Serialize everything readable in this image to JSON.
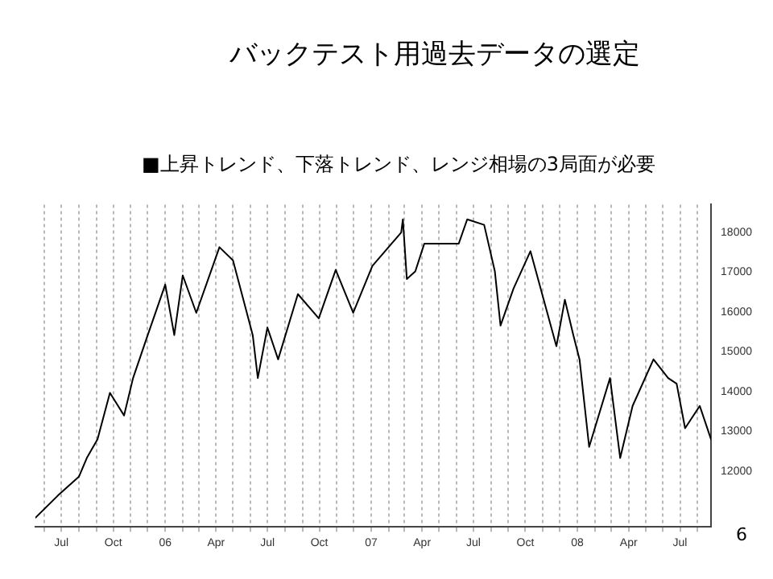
{
  "chart_data": {
    "type": "line",
    "title": "バックテスト用過去データの選定",
    "subtitle": "■上昇トレンド、下落トレンド、レンジ相場の3局面が必要",
    "annotations": [
      "6"
    ],
    "x": [
      "2005-05-16",
      "2005-06-25",
      "2005-08-01",
      "2005-08-15",
      "2005-09-03",
      "2005-09-25",
      "2005-10-20",
      "2005-11-05",
      "2005-11-30",
      "2006-01-01",
      "2006-01-17",
      "2006-02-01",
      "2006-02-25",
      "2006-04-07",
      "2006-05-01",
      "2006-06-05",
      "2006-06-14",
      "2006-07-01",
      "2006-07-20",
      "2006-08-24",
      "2006-09-30",
      "2006-10-30",
      "2006-11-30",
      "2007-01-03",
      "2007-02-23",
      "2007-02-26",
      "2007-03-05",
      "2007-03-20",
      "2007-04-05",
      "2007-06-05",
      "2007-06-20",
      "2007-07-20",
      "2007-08-08",
      "2007-08-18",
      "2007-09-10",
      "2007-10-10",
      "2007-11-25",
      "2007-12-10",
      "2007-12-25",
      "2008-01-05",
      "2008-01-22",
      "2008-02-28",
      "2008-03-17",
      "2008-04-08",
      "2008-05-15",
      "2008-06-10",
      "2008-06-25",
      "2008-07-10",
      "2008-08-05",
      "2008-08-25"
    ],
    "series": [
      {
        "color": "#000000",
        "values": [
          10830,
          11390,
          11860,
          12330,
          12800,
          13970,
          13400,
          14340,
          15380,
          16690,
          15420,
          16920,
          15980,
          17630,
          17300,
          15420,
          14340,
          15610,
          14810,
          16450,
          15840,
          17060,
          15980,
          17160,
          18000,
          18330,
          16830,
          17020,
          17720,
          17720,
          18330,
          18190,
          17020,
          15660,
          16590,
          17530,
          15140,
          16310,
          15420,
          14810,
          12610,
          14340,
          12330,
          13640,
          14810,
          14340,
          14200,
          13080,
          13640,
          12800
        ]
      }
    ],
    "xlim": [
      "2005-05-16",
      "2008-08-25"
    ],
    "xticks": [
      {
        "value": "2005-06-01",
        "label": null
      },
      {
        "value": "2005-07-01",
        "label": "Jul"
      },
      {
        "value": "2005-08-01",
        "label": null
      },
      {
        "value": "2005-09-01",
        "label": null
      },
      {
        "value": "2005-10-01",
        "label": "Oct"
      },
      {
        "value": "2005-11-01",
        "label": null
      },
      {
        "value": "2005-12-01",
        "label": null
      },
      {
        "value": "2006-01-01",
        "label": "06"
      },
      {
        "value": "2006-02-01",
        "label": null
      },
      {
        "value": "2006-03-01",
        "label": null
      },
      {
        "value": "2006-04-01",
        "label": "Apr"
      },
      {
        "value": "2006-05-01",
        "label": null
      },
      {
        "value": "2006-06-01",
        "label": null
      },
      {
        "value": "2006-07-01",
        "label": "Jul"
      },
      {
        "value": "2006-08-01",
        "label": null
      },
      {
        "value": "2006-09-01",
        "label": null
      },
      {
        "value": "2006-10-01",
        "label": "Oct"
      },
      {
        "value": "2006-11-01",
        "label": null
      },
      {
        "value": "2006-12-01",
        "label": null
      },
      {
        "value": "2007-01-01",
        "label": "07"
      },
      {
        "value": "2007-02-01",
        "label": null
      },
      {
        "value": "2007-03-01",
        "label": null
      },
      {
        "value": "2007-04-01",
        "label": "Apr"
      },
      {
        "value": "2007-05-01",
        "label": null
      },
      {
        "value": "2007-06-01",
        "label": null
      },
      {
        "value": "2007-07-01",
        "label": "Jul"
      },
      {
        "value": "2007-08-01",
        "label": null
      },
      {
        "value": "2007-09-01",
        "label": null
      },
      {
        "value": "2007-10-01",
        "label": "Oct"
      },
      {
        "value": "2007-11-01",
        "label": null
      },
      {
        "value": "2007-12-01",
        "label": null
      },
      {
        "value": "2008-01-01",
        "label": "08"
      },
      {
        "value": "2008-02-01",
        "label": null
      },
      {
        "value": "2008-03-01",
        "label": null
      },
      {
        "value": "2008-04-01",
        "label": "Apr"
      },
      {
        "value": "2008-05-01",
        "label": null
      },
      {
        "value": "2008-06-01",
        "label": null
      },
      {
        "value": "2008-07-01",
        "label": "Jul"
      },
      {
        "value": "2008-08-01",
        "label": null
      }
    ],
    "ylim": [
      10600,
      18700
    ],
    "yticks": [
      12000,
      13000,
      14000,
      15000,
      16000,
      17000,
      18000
    ],
    "grid": "x",
    "legend": false,
    "marker": "none",
    "line_style": "solid"
  }
}
